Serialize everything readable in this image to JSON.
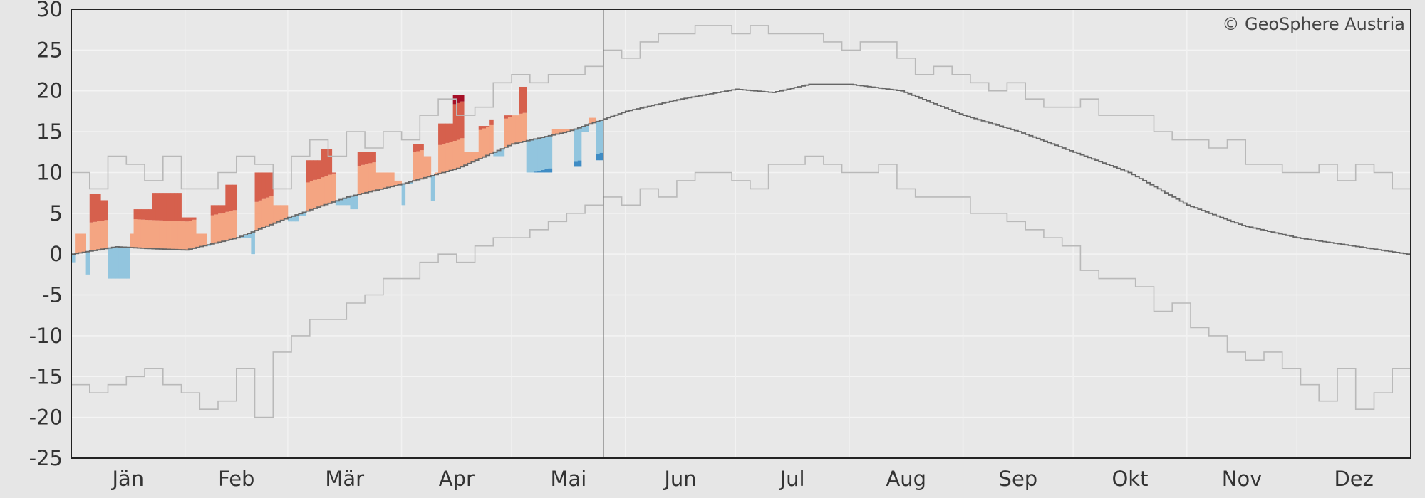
{
  "chart_data": {
    "type": "line",
    "title": "",
    "copyright": "© GeoSphere Austria",
    "xlabel": "",
    "ylabel": "",
    "ylim": [
      -25,
      30
    ],
    "yticks": [
      "30",
      "25",
      "20",
      "15",
      "10",
      "5",
      "0",
      "-5",
      "-10",
      "-15",
      "-20",
      "-25"
    ],
    "ytick_values": [
      30,
      25,
      20,
      15,
      10,
      5,
      0,
      -5,
      -10,
      -15,
      -20,
      -25
    ],
    "months": [
      "Jän",
      "Feb",
      "Mär",
      "Apr",
      "Mai",
      "Jun",
      "Jul",
      "Aug",
      "Sep",
      "Okt",
      "Nov",
      "Dez"
    ],
    "month_start_days": [
      0,
      31,
      59,
      90,
      120,
      151,
      181,
      212,
      243,
      273,
      304,
      334
    ],
    "grid": true,
    "current_day": 144,
    "colors": {
      "warm": "#f4a582",
      "very_warm": "#d6604d",
      "record_warm": "#a50f26",
      "cold": "#92c5de",
      "very_cold": "#3f8cc4",
      "envelope": "#b9b9b9",
      "mean": "#666666"
    },
    "series": [
      {
        "name": "mean",
        "anchors": [
          [
            0,
            0
          ],
          [
            12,
            0.9
          ],
          [
            20,
            0.7
          ],
          [
            31,
            0.5
          ],
          [
            45,
            2
          ],
          [
            59,
            4.5
          ],
          [
            75,
            7
          ],
          [
            90,
            8.6
          ],
          [
            105,
            10.5
          ],
          [
            120,
            13.5
          ],
          [
            135,
            15
          ],
          [
            151,
            17.5
          ],
          [
            166,
            19
          ],
          [
            181,
            20.2
          ],
          [
            191,
            19.8
          ],
          [
            201,
            20.8
          ],
          [
            212,
            20.8
          ],
          [
            226,
            20
          ],
          [
            243,
            17
          ],
          [
            258,
            15
          ],
          [
            273,
            12.5
          ],
          [
            288,
            10
          ],
          [
            304,
            6
          ],
          [
            319,
            3.5
          ],
          [
            334,
            2
          ],
          [
            349,
            1
          ],
          [
            364,
            0
          ]
        ]
      },
      {
        "name": "max",
        "step_days": 5,
        "values": [
          10,
          8,
          12,
          11,
          9,
          12,
          8,
          8,
          10,
          12,
          11,
          8,
          12,
          14,
          12,
          15,
          13,
          15,
          14,
          17,
          19,
          17,
          18,
          21,
          22,
          21,
          22,
          22,
          23,
          25,
          24,
          26,
          27,
          27,
          28,
          28,
          27,
          28,
          27,
          27,
          27,
          26,
          25,
          26,
          26,
          24,
          22,
          23,
          22,
          21,
          20,
          21,
          19,
          18,
          18,
          19,
          17,
          17,
          17,
          15,
          14,
          14,
          13,
          14,
          11,
          11,
          10,
          10,
          11,
          9,
          11,
          10,
          8
        ]
      },
      {
        "name": "min",
        "step_days": 5,
        "values": [
          -16,
          -17,
          -16,
          -15,
          -14,
          -16,
          -17,
          -19,
          -18,
          -14,
          -20,
          -12,
          -10,
          -8,
          -8,
          -6,
          -5,
          -3,
          -3,
          -1,
          0,
          -1,
          1,
          2,
          2,
          3,
          4,
          5,
          6,
          7,
          6,
          8,
          7,
          9,
          10,
          10,
          9,
          8,
          11,
          11,
          12,
          11,
          10,
          10,
          11,
          8,
          7,
          7,
          7,
          5,
          5,
          4,
          3,
          2,
          1,
          -2,
          -3,
          -3,
          -4,
          -7,
          -6,
          -9,
          -10,
          -12,
          -13,
          -12,
          -14,
          -16,
          -18,
          -14,
          -19,
          -17,
          -14
        ]
      },
      {
        "name": "current_year",
        "segments": [
          [
            0,
            0,
            -1
          ],
          [
            1,
            3,
            2.5
          ],
          [
            4,
            4,
            -2.5
          ],
          [
            5,
            7,
            7.4
          ],
          [
            8,
            9,
            6.6
          ],
          [
            10,
            15,
            -3
          ],
          [
            16,
            16,
            2.5
          ],
          [
            17,
            21,
            5.5
          ],
          [
            22,
            29,
            7.5
          ],
          [
            30,
            33,
            4.5
          ],
          [
            34,
            36,
            2.5
          ],
          [
            37,
            37,
            1
          ],
          [
            38,
            41,
            6
          ],
          [
            42,
            44,
            8.5
          ],
          [
            45,
            48,
            2
          ],
          [
            49,
            49,
            0
          ],
          [
            50,
            54,
            10
          ],
          [
            55,
            58,
            6
          ],
          [
            59,
            61,
            4
          ],
          [
            62,
            63,
            4.7
          ],
          [
            64,
            67,
            11.5
          ],
          [
            68,
            70,
            12.9
          ],
          [
            71,
            71,
            10
          ],
          [
            72,
            75,
            6
          ],
          [
            76,
            77,
            5.5
          ],
          [
            78,
            82,
            12.5
          ],
          [
            83,
            87,
            10
          ],
          [
            88,
            89,
            9
          ],
          [
            90,
            90,
            6
          ],
          [
            91,
            92,
            8.6
          ],
          [
            93,
            95,
            13.5
          ],
          [
            96,
            97,
            12
          ],
          [
            98,
            98,
            6.5
          ],
          [
            99,
            99,
            10
          ],
          [
            100,
            103,
            16
          ],
          [
            104,
            106,
            19.5
          ],
          [
            107,
            110,
            12.5
          ],
          [
            111,
            113,
            15.7
          ],
          [
            114,
            114,
            16.5
          ],
          [
            115,
            115,
            12
          ],
          [
            116,
            117,
            12
          ],
          [
            118,
            121,
            17
          ],
          [
            122,
            123,
            20.5
          ],
          [
            124,
            130,
            10
          ],
          [
            131,
            136,
            15.3
          ],
          [
            137,
            138,
            10.7
          ],
          [
            139,
            140,
            15
          ],
          [
            141,
            142,
            16.7
          ],
          [
            143,
            144,
            11.5
          ]
        ]
      }
    ]
  }
}
